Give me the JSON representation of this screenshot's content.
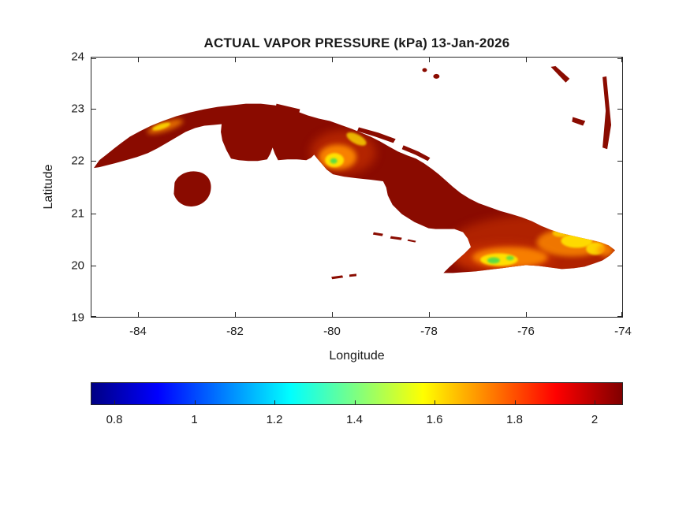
{
  "figure": {
    "title": "ACTUAL VAPOR PRESSURE (kPa) 13-Jan-2026",
    "xlabel": "Longitude",
    "ylabel": "Latitude"
  },
  "chart_data": {
    "type": "heatmap",
    "title": "ACTUAL VAPOR PRESSURE (kPa) 13-Jan-2026",
    "variable": "Actual Vapor Pressure",
    "units": "kPa",
    "date": "13-Jan-2026",
    "region": "Cuba, Isla de la Juventud and nearby cays (Bahamas specks, Cayman specks)",
    "xlabel": "Longitude",
    "ylabel": "Latitude",
    "xlim": [
      -85,
      -74
    ],
    "ylim": [
      19,
      24
    ],
    "x_ticks": [
      -84,
      -82,
      -80,
      -78,
      -76,
      -74
    ],
    "y_ticks": [
      24,
      23,
      22,
      21,
      20,
      19
    ],
    "grid": false,
    "colormap": "jet",
    "colorbar": {
      "orientation": "horizontal",
      "location": "below-plot",
      "ticks": [
        0.8,
        1,
        1.2,
        1.4,
        1.6,
        1.8,
        2
      ],
      "range": [
        0.74,
        2.07
      ],
      "stops": [
        {
          "pos": 0,
          "color": "#000084"
        },
        {
          "pos": 0.125,
          "color": "#0000ff"
        },
        {
          "pos": 0.375,
          "color": "#00ffff"
        },
        {
          "pos": 0.625,
          "color": "#ffff00"
        },
        {
          "pos": 0.875,
          "color": "#ff0000"
        },
        {
          "pos": 1,
          "color": "#800000"
        }
      ]
    },
    "map_colors": {
      "land_dominant": "#8a0b00",
      "halo_red_orange": "#d63a00",
      "hotspot_orange": "#ff8c00",
      "hotspot_yellow": "#ffe600",
      "hotspot_green": "#4cdc4c",
      "sea_background": "#ffffff"
    },
    "data_summary": {
      "dominant_value_kpa": "approx 2.0 (near colorbar maximum) over most lowland Cuba, shown dark red",
      "low_value_anomalies": [
        {
          "area": "Escambray / Guamuhaya mountains (central Cuba)",
          "lon": -80.0,
          "lat": 22.0,
          "value_kpa": "approx 1.4 to 1.7 (yellow-orange)"
        },
        {
          "area": "Sierra Maestra (southeast coast)",
          "lon": -76.7,
          "lat": 20.0,
          "value_kpa": "approx 1.2 to 1.6 (yellow-green core)"
        },
        {
          "area": "Nipe-Sagua-Baracoa massif (eastern tip)",
          "lon": -75.0,
          "lat": 20.4,
          "value_kpa": "approx 1.4 to 1.7 (yellow-orange)"
        },
        {
          "area": "Sierra del Rosario (western Cuba)",
          "lon": -83.8,
          "lat": 22.7,
          "value_kpa": "approx 1.6 to 1.8 (thin yellow streak)"
        }
      ]
    }
  }
}
